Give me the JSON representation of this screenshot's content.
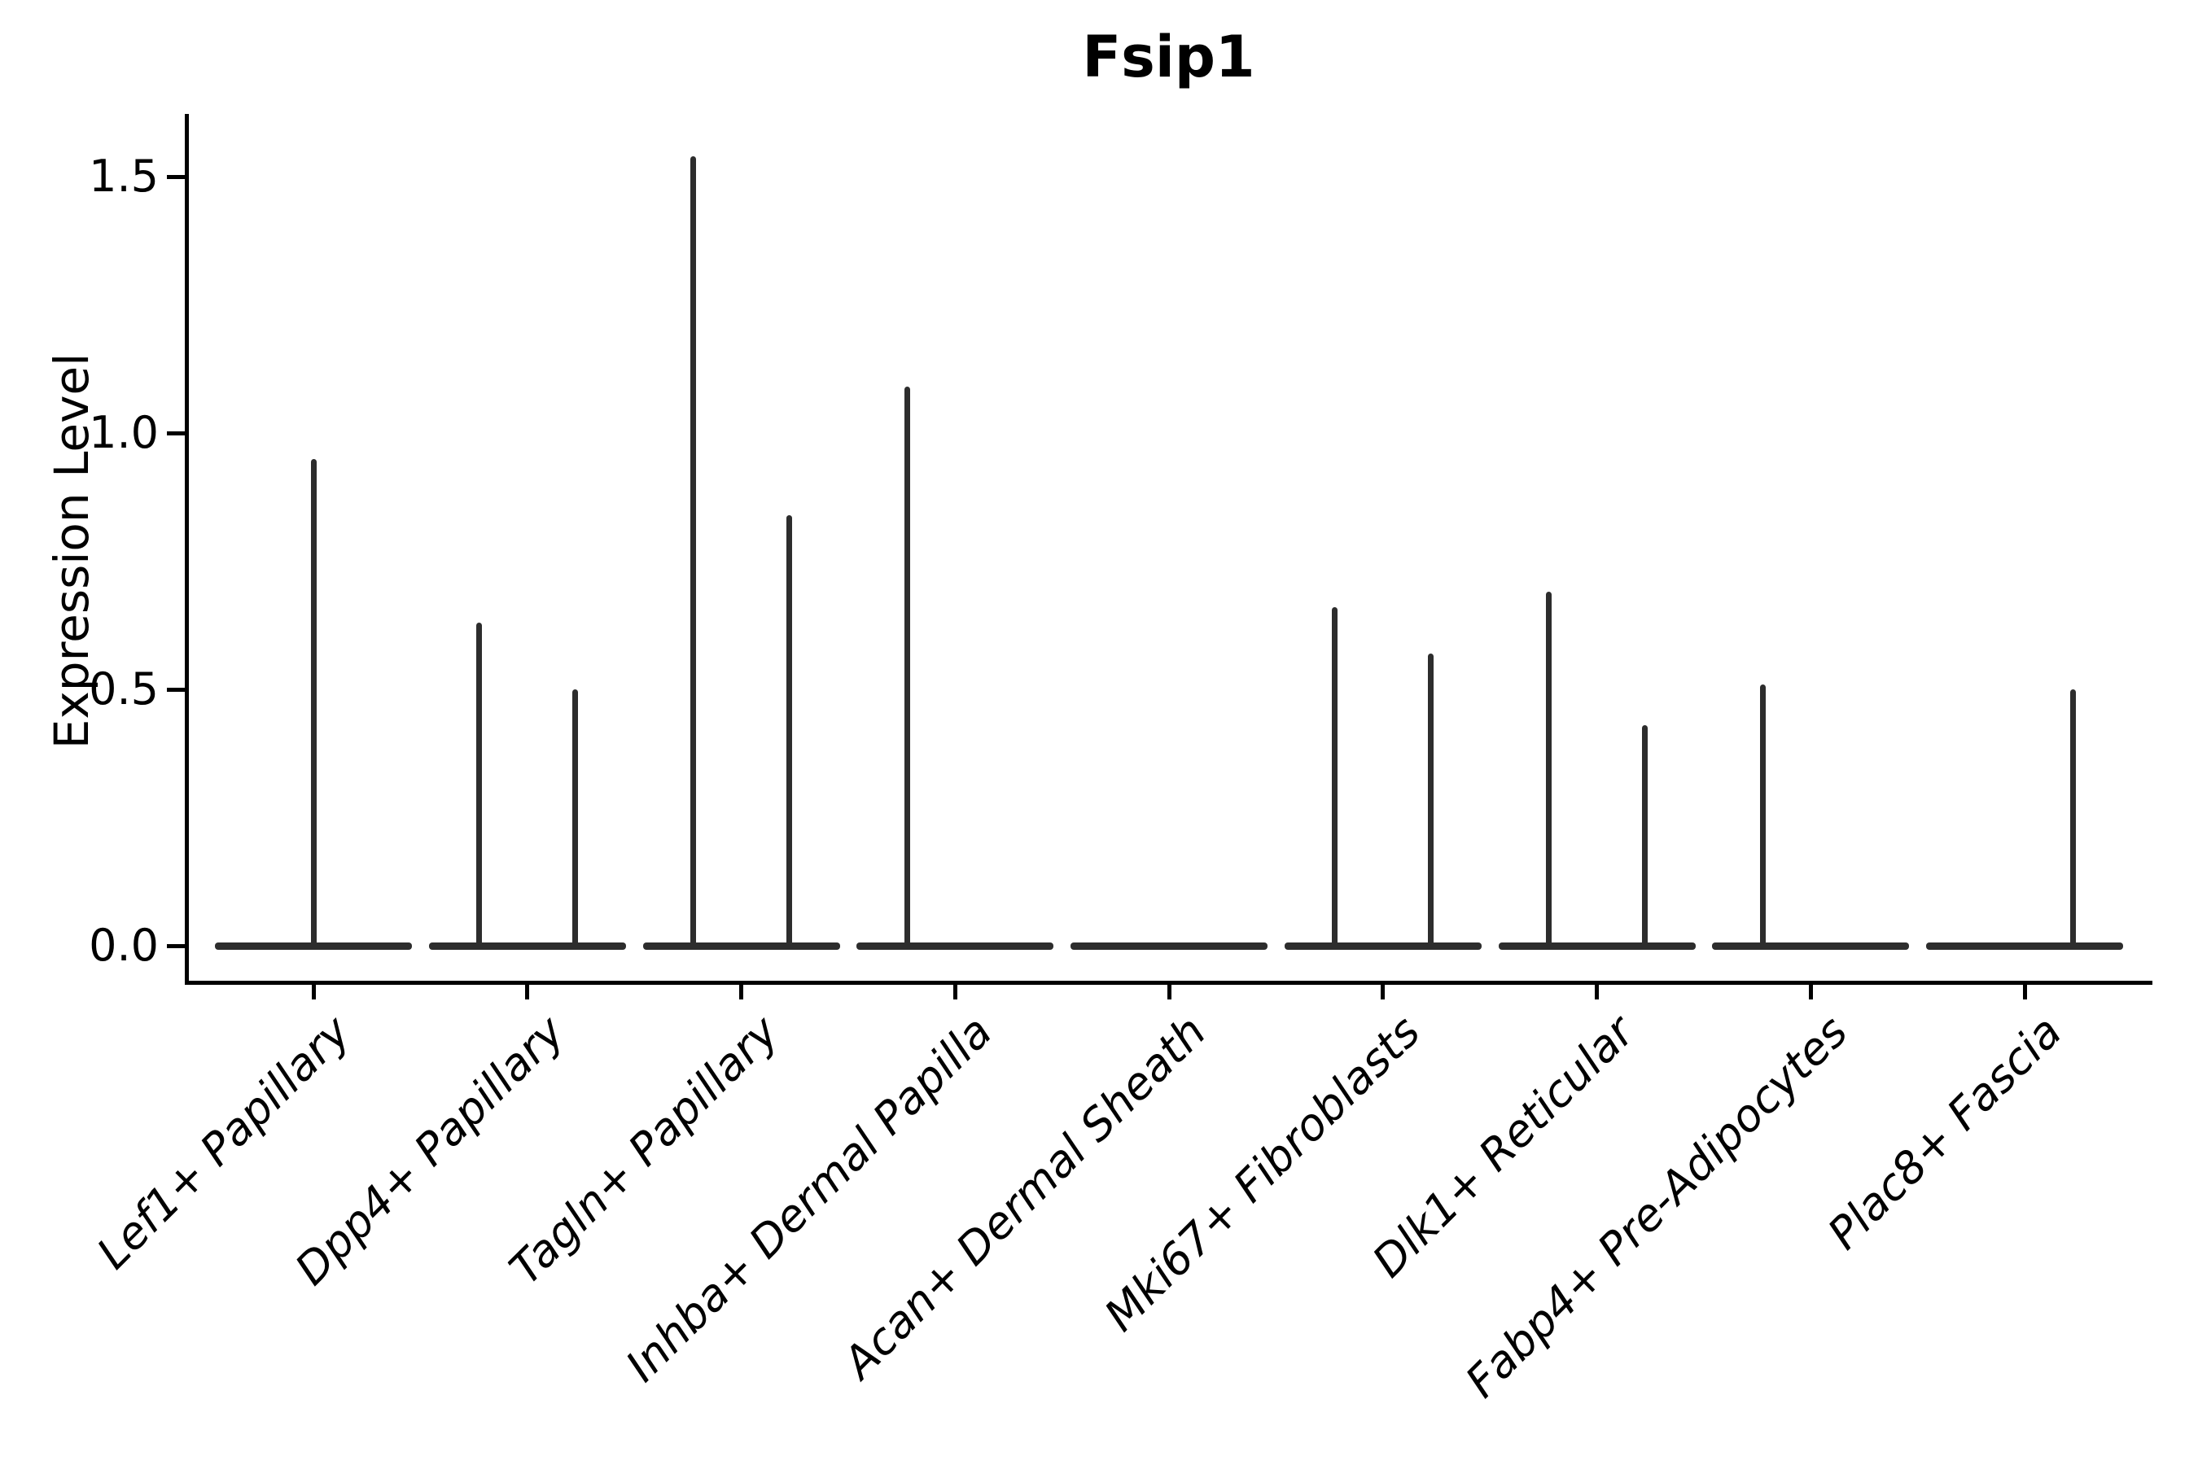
{
  "title": "Fsip1",
  "axes": {
    "ylabel": "Expression Level",
    "yticks": [
      {
        "label": "0.0",
        "value": 0.0
      },
      {
        "label": "0.5",
        "value": 0.5
      },
      {
        "label": "1.0",
        "value": 1.0
      },
      {
        "label": "1.5",
        "value": 1.5
      }
    ]
  },
  "colors": {
    "violin_stroke": "#2d2d2d",
    "text": "#000000",
    "background": "#ffffff"
  },
  "chart_data": {
    "type": "violin",
    "title": "Fsip1",
    "xlabel": "",
    "ylabel": "Expression Level",
    "ylim": [
      -0.08,
      1.62
    ],
    "yticks": [
      0.0,
      0.5,
      1.0,
      1.5
    ],
    "grid": false,
    "legend": "none",
    "note": "Needle-shaped violins: bulk of cells at expression 0 (flat baseline bar per category); thin spikes rise to the max expression. Spikes sit at category center, or dodged left/right where a category holds two sub-violins; categories with no spike are all-zero.",
    "categories": [
      {
        "label": "Lef1+ Papillary",
        "spikes": [
          {
            "pos": "center",
            "max": 0.95
          }
        ]
      },
      {
        "label": "Dpp4+ Papillary",
        "spikes": [
          {
            "pos": "left",
            "max": 0.63
          },
          {
            "pos": "right",
            "max": 0.5
          }
        ]
      },
      {
        "label": "Tagln+ Papillary",
        "spikes": [
          {
            "pos": "left",
            "max": 1.54
          },
          {
            "pos": "right",
            "max": 0.84
          }
        ]
      },
      {
        "label": "Inhba+ Dermal Papilla",
        "spikes": [
          {
            "pos": "left",
            "max": 1.09
          }
        ]
      },
      {
        "label": "Acan+ Dermal Sheath",
        "spikes": []
      },
      {
        "label": "Mki67+ Fibroblasts",
        "spikes": [
          {
            "pos": "left",
            "max": 0.66
          },
          {
            "pos": "right",
            "max": 0.57
          }
        ]
      },
      {
        "label": "Dlk1+ Reticular",
        "spikes": [
          {
            "pos": "left",
            "max": 0.69
          },
          {
            "pos": "right",
            "max": 0.43
          }
        ]
      },
      {
        "label": "Fabp4+ Pre-Adipocytes",
        "spikes": [
          {
            "pos": "left",
            "max": 0.51
          }
        ]
      },
      {
        "label": "Plac8+ Fascia",
        "spikes": [
          {
            "pos": "right",
            "max": 0.5
          }
        ]
      }
    ]
  }
}
